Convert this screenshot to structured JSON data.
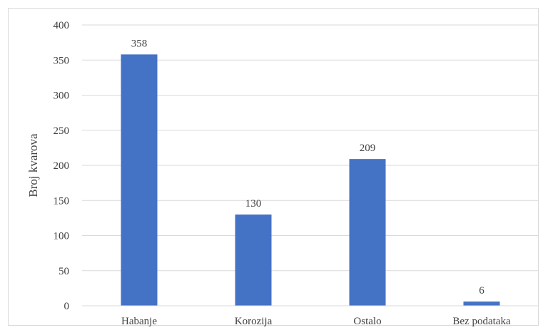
{
  "chart_data": {
    "type": "bar",
    "categories": [
      "Habanje",
      "Korozija",
      "Ostalo",
      "Bez podataka"
    ],
    "values": [
      358,
      130,
      209,
      6
    ],
    "data_labels": [
      "358",
      "130",
      "209",
      "6"
    ],
    "title": "",
    "xlabel": "",
    "ylabel": "Broj kvarova",
    "ylim": [
      0,
      400
    ],
    "yticks": [
      0,
      50,
      100,
      150,
      200,
      250,
      300,
      350,
      400
    ],
    "ytick_labels": [
      "0",
      "50",
      "100",
      "150",
      "200",
      "250",
      "300",
      "350",
      "400"
    ],
    "grid": true,
    "legend": "none",
    "bar_color": "#4472c4",
    "grid_color": "#d9d9d9"
  }
}
